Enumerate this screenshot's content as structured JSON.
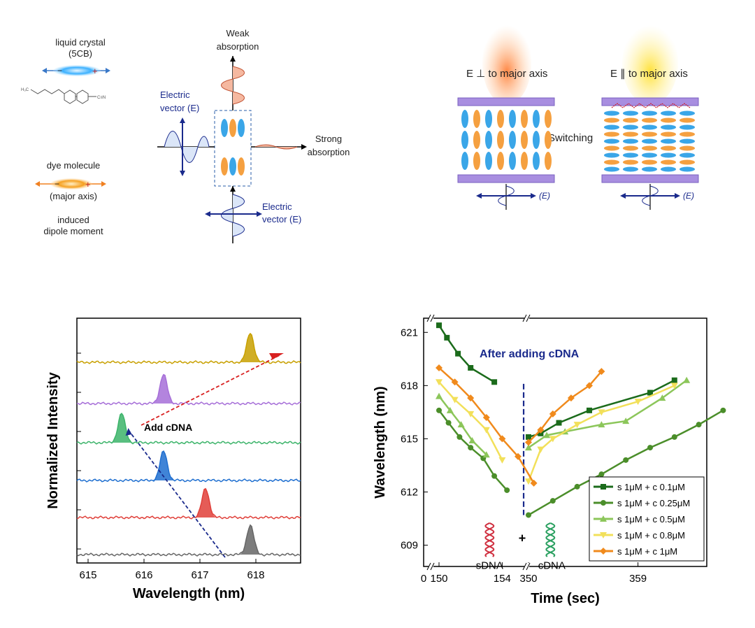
{
  "schematic": {
    "lc_label": "liquid crystal",
    "lc_sub": "(5CB)",
    "dye_label": "dye molecule",
    "major_axis": "(major axis)",
    "induced": "induced",
    "dipole": "dipole moment",
    "weak1": "Weak",
    "weak2": "absorption",
    "strong1": "Strong",
    "strong2": "absorption",
    "ev1a": "Electric",
    "ev1b": "vector (E)",
    "ev2a": "Electric",
    "ev2b": "vector (E)",
    "perp_title": "E ⊥ to major axis",
    "para_title": "E ∥ to major axis",
    "switching": "Switching",
    "e_label": "(E)",
    "mol_h": "H₃C",
    "mol_n": "C≡N"
  },
  "chart_data": [
    {
      "type": "area",
      "xlabel": "Wavelength (nm)",
      "ylabel": "Normalized Intensity",
      "xlim": [
        614.8,
        618.8
      ],
      "xticks": [
        615,
        616,
        617,
        618
      ],
      "annotation": "Add cDNA",
      "series": [
        {
          "color": "#666666",
          "peak": 617.9,
          "offset": 0
        },
        {
          "color": "#e0403a",
          "peak": 617.1,
          "offset": 1
        },
        {
          "color": "#1f6fd0",
          "peak": 616.35,
          "offset": 2
        },
        {
          "color": "#3cb46a",
          "peak": 615.6,
          "offset": 3
        },
        {
          "color": "#a66ed8",
          "peak": 616.35,
          "offset": 4
        },
        {
          "color": "#c8a000",
          "peak": 617.9,
          "offset": 5
        }
      ]
    },
    {
      "type": "line",
      "xlabel": "Time (sec)",
      "ylabel": "Wavelength (nm)",
      "ylim": [
        607.8,
        621.8
      ],
      "yticks": [
        609,
        612,
        615,
        618,
        621
      ],
      "xticks": [
        "0",
        "150",
        "154",
        "350",
        "359"
      ],
      "annotation": "After adding cDNA",
      "sdna_label": "sDNA",
      "cdna_label": "cDNA",
      "plus": "+",
      "series": [
        {
          "name": "s 1μM + c 0.1μM",
          "color": "#1b6b1b",
          "marker": "square",
          "before": [
            [
              150,
              621.4
            ],
            [
              150.5,
              620.7
            ],
            [
              151.2,
              619.8
            ],
            [
              152,
              619.0
            ],
            [
              153.5,
              618.2
            ]
          ],
          "after": [
            [
              350,
              615.1
            ],
            [
              351,
              615.3
            ],
            [
              352.5,
              615.9
            ],
            [
              355,
              616.6
            ],
            [
              360,
              617.6
            ],
            [
              362,
              618.3
            ]
          ]
        },
        {
          "name": "s 1μM + c 0.25μM",
          "color": "#4b8e2a",
          "marker": "circle",
          "before": [
            [
              150,
              616.6
            ],
            [
              150.6,
              615.9
            ],
            [
              151.3,
              615.1
            ],
            [
              152,
              614.5
            ],
            [
              152.8,
              613.9
            ],
            [
              153.5,
              612.9
            ],
            [
              154.3,
              612.1
            ]
          ],
          "after": [
            [
              350,
              610.7
            ],
            [
              352,
              611.5
            ],
            [
              354,
              612.3
            ],
            [
              356,
              613.0
            ],
            [
              358,
              613.8
            ],
            [
              360,
              614.5
            ],
            [
              362,
              615.1
            ],
            [
              364,
              615.8
            ],
            [
              366,
              616.6
            ]
          ]
        },
        {
          "name": "s 1μM + c 0.5μM",
          "color": "#8cc65a",
          "marker": "triangle-up",
          "before": [
            [
              150,
              617.4
            ],
            [
              150.7,
              616.6
            ],
            [
              151.4,
              615.8
            ],
            [
              152.1,
              614.9
            ],
            [
              153,
              614.1
            ]
          ],
          "after": [
            [
              350,
              614.5
            ],
            [
              351.5,
              615.2
            ],
            [
              353,
              615.4
            ],
            [
              356,
              615.8
            ],
            [
              358,
              616.0
            ],
            [
              361,
              617.3
            ],
            [
              363,
              618.3
            ]
          ]
        },
        {
          "name": "s 1μM + c 0.8μM",
          "color": "#f2e05a",
          "marker": "triangle-down",
          "before": [
            [
              150,
              618.2
            ],
            [
              151,
              617.2
            ],
            [
              152,
              616.4
            ],
            [
              153,
              615.5
            ],
            [
              154,
              613.8
            ]
          ],
          "after": [
            [
              350,
              612.6
            ],
            [
              351,
              614.4
            ],
            [
              352,
              615.0
            ],
            [
              354,
              615.8
            ],
            [
              356,
              616.5
            ],
            [
              359,
              617.1
            ],
            [
              362,
              618.0
            ]
          ]
        },
        {
          "name": "s 1μM + c 1μM",
          "color": "#f08a1c",
          "marker": "diamond",
          "before": [
            [
              150,
              619.0
            ],
            [
              151,
              618.2
            ],
            [
              152,
              617.3
            ],
            [
              153,
              616.2
            ],
            [
              154,
              615.0
            ],
            [
              155,
              614.0
            ],
            [
              156,
              612.5
            ]
          ],
          "after": [
            [
              350,
              614.8
            ],
            [
              351,
              615.5
            ],
            [
              352,
              616.4
            ],
            [
              353.5,
              617.3
            ],
            [
              355,
              618.0
            ],
            [
              356,
              618.8
            ]
          ]
        }
      ]
    }
  ]
}
